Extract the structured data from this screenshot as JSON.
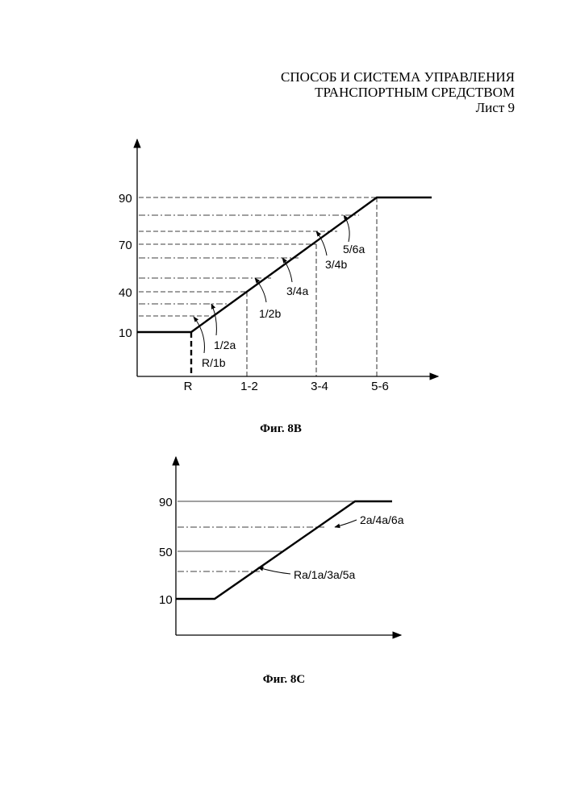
{
  "header": {
    "title_line1": "СПОСОБ И СИСТЕМА УПРАВЛЕНИЯ",
    "title_line2": "ТРАНСПОРТНЫМ СРЕДСТВОМ",
    "sheet": "Лист 9"
  },
  "fig8b": {
    "caption": "Фиг. 8B",
    "y_ticks": [
      "90",
      "70",
      "40",
      "10"
    ],
    "x_ticks": [
      "R",
      "1-2",
      "3-4",
      "5-6"
    ],
    "labels": {
      "l56a": "5/6a",
      "l34b": "3/4b",
      "l34a": "3/4a",
      "l12b": "1/2b",
      "l12a": "1/2a",
      "lR1b": "R/1b"
    }
  },
  "fig8c": {
    "caption": "Фиг. 8C",
    "y_ticks": [
      "90",
      "50",
      "10"
    ],
    "labels": {
      "even": "2a/4a/6a",
      "odd": "Ra/1a/3a/5a"
    }
  }
}
